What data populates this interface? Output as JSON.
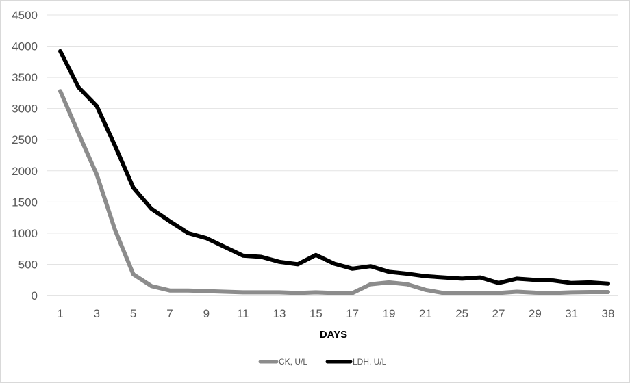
{
  "chart_data": {
    "type": "line",
    "title": "",
    "xlabel": "DAYS",
    "ylabel": "",
    "ylim": [
      0,
      4500
    ],
    "yticks": [
      0,
      500,
      1000,
      1500,
      2000,
      2500,
      3000,
      3500,
      4000,
      4500
    ],
    "categories": [
      "1",
      "2",
      "3",
      "4",
      "5",
      "6",
      "7",
      "8",
      "9",
      "10",
      "11",
      "12",
      "13",
      "14",
      "15",
      "16",
      "17",
      "18",
      "19",
      "20",
      "21",
      "23",
      "25",
      "26",
      "27",
      "28",
      "29",
      "30",
      "31",
      "32",
      "38"
    ],
    "xtick_labels": [
      "1",
      "3",
      "5",
      "7",
      "9",
      "11",
      "13",
      "15",
      "17",
      "19",
      "21",
      "25",
      "27",
      "29",
      "31",
      "38"
    ],
    "grid": true,
    "legend_position": "bottom",
    "series": [
      {
        "name": "CK, U/L",
        "color": "#8c8c8c",
        "values": [
          3280,
          2600,
          1940,
          1050,
          340,
          150,
          80,
          80,
          70,
          60,
          50,
          50,
          50,
          40,
          50,
          40,
          40,
          180,
          210,
          180,
          90,
          40,
          40,
          40,
          40,
          60,
          45,
          40,
          50,
          55,
          55
        ]
      },
      {
        "name": "LDH, U/L",
        "color": "#000000",
        "values": [
          3920,
          3340,
          3040,
          2400,
          1730,
          1390,
          1190,
          1000,
          920,
          780,
          640,
          620,
          540,
          500,
          650,
          510,
          430,
          470,
          380,
          350,
          310,
          290,
          270,
          290,
          200,
          270,
          250,
          240,
          200,
          210,
          190
        ]
      }
    ]
  }
}
